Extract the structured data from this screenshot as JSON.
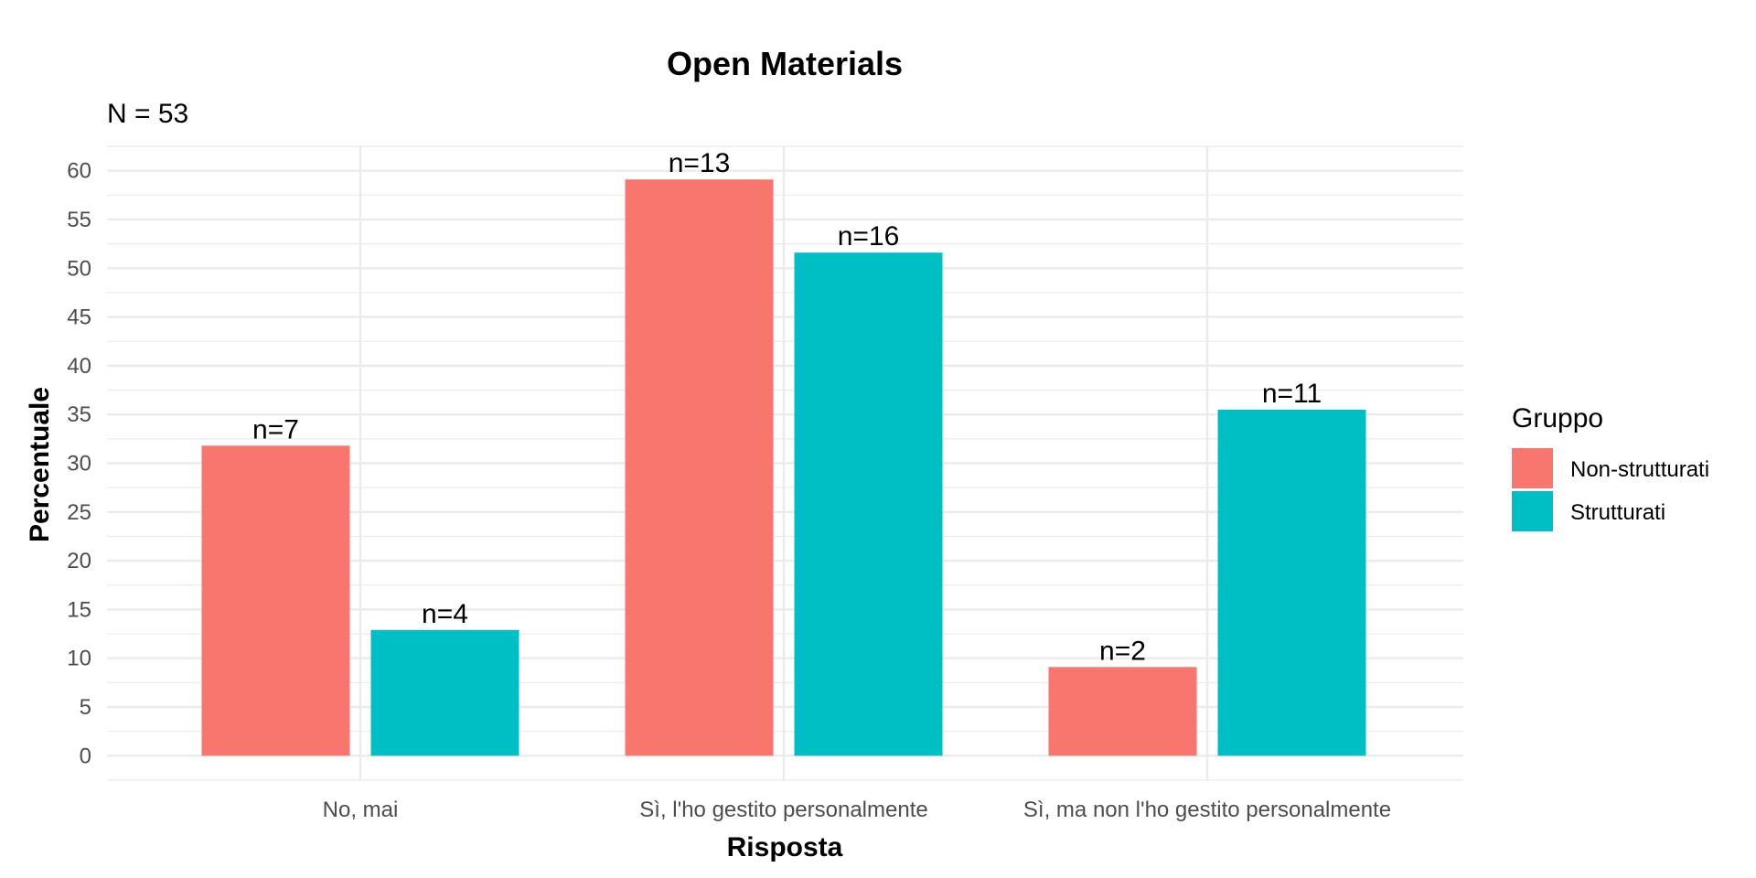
{
  "chart_data": {
    "type": "bar",
    "title": "Open Materials",
    "subtitle": "N = 53",
    "xlabel": "Risposta",
    "ylabel": "Percentuale",
    "categories": [
      "No, mai",
      "Sì, l'ho gestito personalmente",
      "Sì, ma non l'ho gestito personalmente"
    ],
    "series": [
      {
        "name": "Non-strutturati",
        "color": "#F8766D",
        "values": [
          31.8,
          59.1,
          9.1
        ],
        "labels": [
          "n=7",
          "n=13",
          "n=2"
        ]
      },
      {
        "name": "Strutturati",
        "color": "#00BFC4",
        "values": [
          12.9,
          51.6,
          35.5
        ],
        "labels": [
          "n=4",
          "n=16",
          "n=11"
        ]
      }
    ],
    "ylim": [
      -2.5,
      62.5
    ],
    "yticks": [
      0,
      5,
      10,
      15,
      20,
      25,
      30,
      35,
      40,
      45,
      50,
      55,
      60
    ],
    "grid": true,
    "legend": {
      "title": "Gruppo",
      "placement": "right"
    }
  }
}
